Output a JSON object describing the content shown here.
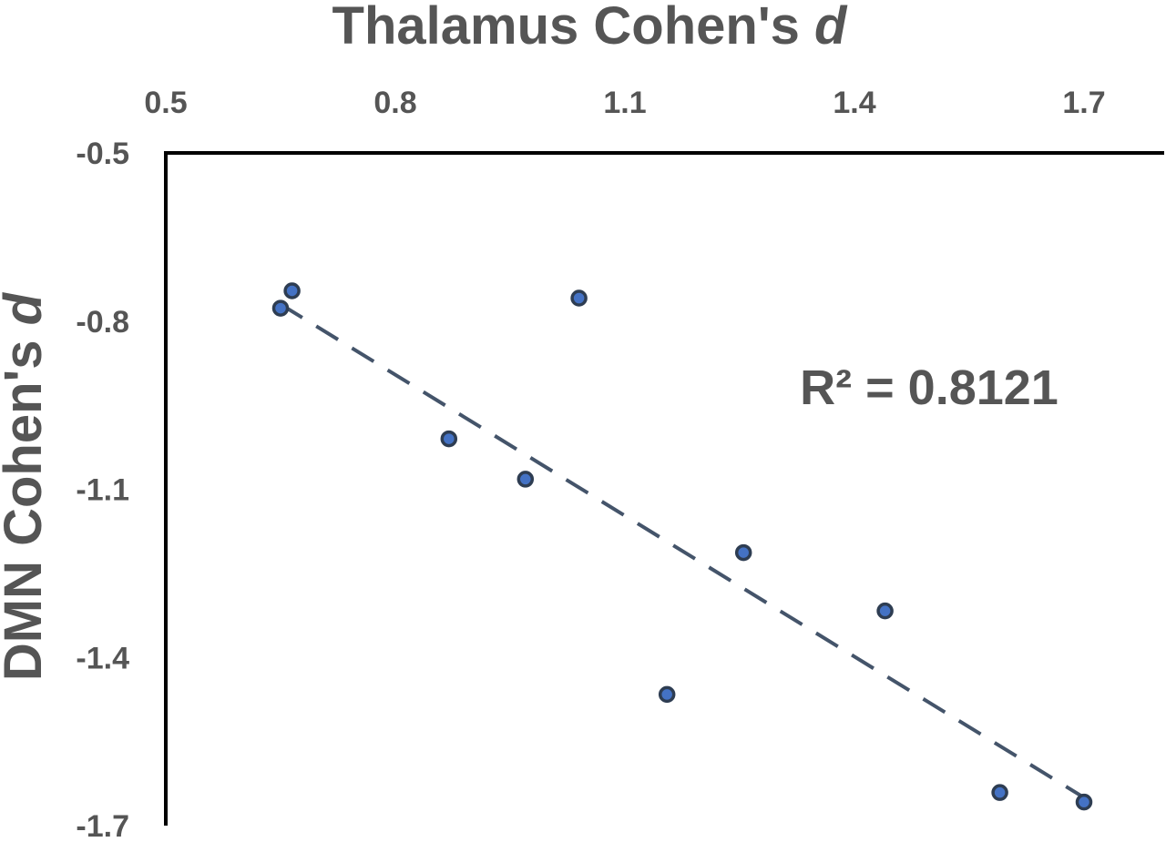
{
  "chart_data": {
    "type": "scatter",
    "xlabel": "Thalamus Cohen's ",
    "xlabel_italic": "d",
    "ylabel": "DMN Cohen's ",
    "ylabel_italic": "d",
    "xlim": [
      0.5,
      1.7
    ],
    "ylim": [
      -1.7,
      -0.5
    ],
    "x_axis_position": "top",
    "x_ticks": [
      "0.5",
      "0.8",
      "1.1",
      "1.4",
      "1.7"
    ],
    "y_ticks": [
      "-0.5",
      "-0.8",
      "-1.1",
      "-1.4",
      "-1.7"
    ],
    "x_tick_values": [
      0.5,
      0.8,
      1.1,
      1.4,
      1.7
    ],
    "y_tick_values": [
      -0.5,
      -0.8,
      -1.1,
      -1.4,
      -1.7
    ],
    "grid": false,
    "legend": "none",
    "series": [
      {
        "x": [
          0.65,
          0.665,
          1.04,
          0.87,
          0.97,
          1.155,
          1.255,
          1.44,
          1.59,
          1.7
        ],
        "y": [
          -0.777,
          -0.746,
          -0.759,
          -1.01,
          -1.082,
          -1.466,
          -1.213,
          -1.317,
          -1.641,
          -1.658
        ],
        "marker_color": "#4472C4",
        "marker_edge_color": "#2E3D52"
      }
    ],
    "trendline": {
      "type": "linear",
      "x": [
        0.65,
        1.7
      ],
      "y": [
        -0.77,
        -1.65
      ],
      "color": "#44546A",
      "style": "dashed"
    },
    "annotations": [
      {
        "text": "R² = 0.8121"
      }
    ]
  }
}
